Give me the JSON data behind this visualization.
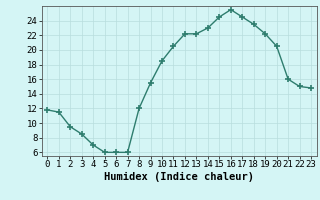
{
  "x": [
    0,
    1,
    2,
    3,
    4,
    5,
    6,
    7,
    8,
    9,
    10,
    11,
    12,
    13,
    14,
    15,
    16,
    17,
    18,
    19,
    20,
    21,
    22,
    23
  ],
  "y": [
    11.8,
    11.5,
    9.5,
    8.5,
    7.0,
    6.0,
    6.0,
    6.0,
    12.0,
    15.5,
    18.5,
    20.5,
    22.2,
    22.2,
    23.0,
    24.5,
    25.5,
    24.5,
    23.5,
    22.2,
    20.5,
    16.0,
    15.0,
    14.8
  ],
  "line_color": "#2e7d6e",
  "marker": "+",
  "marker_size": 4,
  "marker_linewidth": 1.2,
  "xlabel": "Humidex (Indice chaleur)",
  "xlim": [
    -0.5,
    23.5
  ],
  "ylim": [
    5.5,
    26
  ],
  "yticks": [
    6,
    8,
    10,
    12,
    14,
    16,
    18,
    20,
    22,
    24
  ],
  "xticks": [
    0,
    1,
    2,
    3,
    4,
    5,
    6,
    7,
    8,
    9,
    10,
    11,
    12,
    13,
    14,
    15,
    16,
    17,
    18,
    19,
    20,
    21,
    22,
    23
  ],
  "bg_color": "#d4f5f5",
  "grid_color": "#b8dede",
  "line_width": 1.0,
  "tick_fontsize": 6.5,
  "xlabel_fontsize": 7.5,
  "xlabel_fontweight": "bold"
}
